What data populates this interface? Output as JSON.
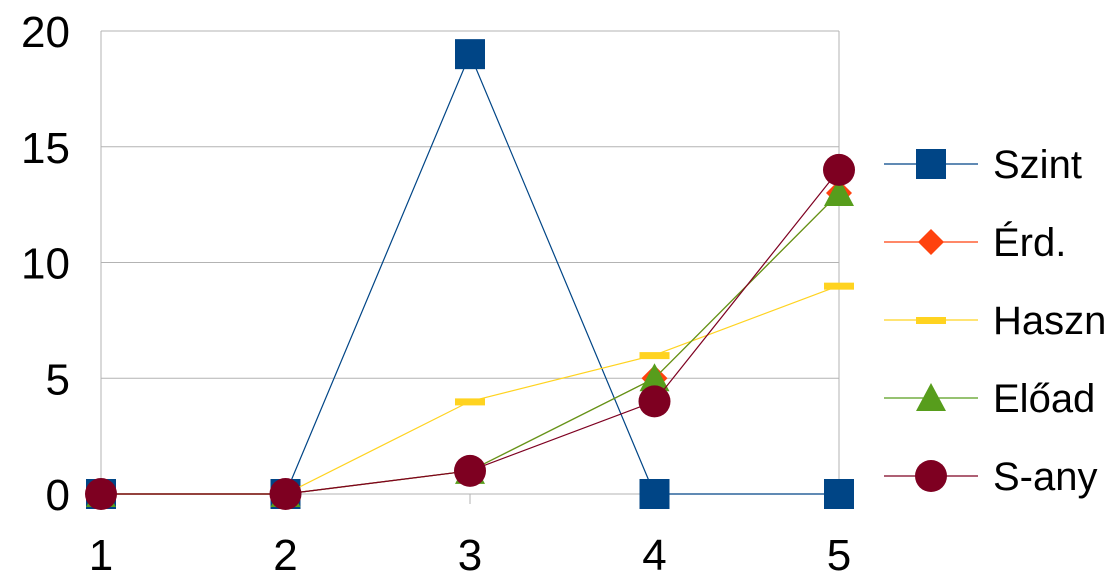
{
  "chart_data": {
    "type": "line",
    "title": "",
    "xlabel": "",
    "ylabel": "",
    "categories": [
      "1",
      "2",
      "3",
      "4",
      "5"
    ],
    "ylim": [
      0,
      20
    ],
    "yticks": [
      "0",
      "5",
      "10",
      "15",
      "20"
    ],
    "grid": true,
    "legend_position": "right",
    "series": [
      {
        "name": "Szint",
        "values": [
          0,
          0,
          19,
          0,
          0
        ],
        "color": "#004586",
        "marker": "square"
      },
      {
        "name": "Érd.",
        "values": [
          0,
          0,
          1,
          5,
          13
        ],
        "color": "#ff420e",
        "marker": "diamond"
      },
      {
        "name": "Haszn",
        "values": [
          0,
          0,
          4,
          6,
          9
        ],
        "color": "#ffd320",
        "marker": "dash"
      },
      {
        "name": "Előad",
        "values": [
          0,
          0,
          1,
          5,
          13
        ],
        "color": "#579d1c",
        "marker": "triangle"
      },
      {
        "name": "S-any",
        "values": [
          0,
          0,
          1,
          4,
          14
        ],
        "color": "#7e0021",
        "marker": "circle"
      }
    ]
  }
}
